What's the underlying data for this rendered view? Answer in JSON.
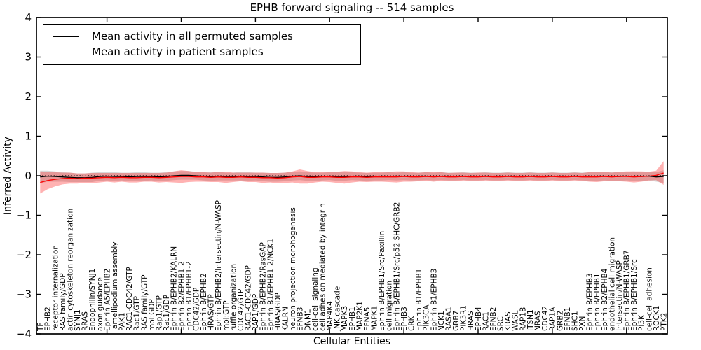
{
  "figure": {
    "title": "EPHB forward signaling -- 514 samples",
    "xlabel": "Cellular Entities",
    "ylabel": "Inferred Activity"
  },
  "legend": {
    "position": "upper left",
    "entries": [
      {
        "label": "Mean activity in all permuted samples",
        "color": "#000000"
      },
      {
        "label": "Mean activity in patient samples",
        "color": "#ff0000"
      }
    ]
  },
  "chart_data": {
    "type": "line",
    "title": "EPHB forward signaling -- 514 samples",
    "xlabel": "Cellular Entities",
    "ylabel": "Inferred Activity",
    "ylim": [
      -4,
      4
    ],
    "grid": false,
    "legend_position": "upper left",
    "y_ticks": [
      "4",
      "3",
      "2",
      "1",
      "0",
      "−1",
      "−2",
      "−3",
      "−4"
    ],
    "zero_line": {
      "y": 0,
      "style": "dotted",
      "color": "#000000"
    },
    "band_colors": {
      "permuted": "#808080",
      "patient": "#ff0000"
    },
    "categories": [
      "TF",
      "EPHB2",
      "receptor internalization",
      "RAS family/GDP",
      "actin cytoskeleton reorganization",
      "SYNJ1",
      "RRAS",
      "Endophilin/SYNJ1",
      "axon guidance",
      "Ephrin A5/EPHB2",
      "lamellipodium assembly",
      "PAK1",
      "RAC1-CDC42/GTP",
      "Rac1/GTP",
      "RAS family/GTP",
      "mol:GDP",
      "Rap1/GTP",
      "Rac1/GDP",
      "Ephrin B/EPHB2/KALRN",
      "Ephrin B2/EPHB1-2",
      "Ephrin B1/EPHB1-2",
      "CDC42/GDP",
      "Ephrin B/EPHB2",
      "HRAS/GTP",
      "Ephrin B/EPHB2/Intersectin/N-WASP",
      "mol:GTP",
      "ruffle organization",
      "CDC42/GTP",
      "RAC1-CDC42/GDP",
      "RAP1/GDP",
      "Ephrin B/EPHB2/RasGAP",
      "Ephrin B1/EPHB1-2/NCK1",
      "HRAS/GDP",
      "KALRN",
      "neuron projection morphogenesis",
      "EFNB3",
      "DNM1",
      "cell-cell signaling",
      "cell adhesion mediated by integrin",
      "MAP4K4",
      "JNK cascade",
      "MAPK3",
      "EPHB1",
      "MAP2K1",
      "EFNA5",
      "MAPK1",
      "Ephrin B/EPHB1/Src/Paxillin",
      "cell migration",
      "Ephrin B/EPHB1/Src/p52 SHC/GRB2",
      "EPHB3",
      "CRK",
      "Ephrin B1/EPHB1",
      "PIK3CA",
      "Ephrin B1/EPHB3",
      "NCK1",
      "RASA1",
      "GRB7",
      "PIK3R1",
      "HRAS",
      "EPHB4",
      "RAC1",
      "EFNB2",
      "SRC",
      "KRAS",
      "WASL",
      "RAP1B",
      "ITSN1",
      "NRAS",
      "CDC42",
      "RAP1A",
      "GRB2",
      "EFNB1",
      "SHC1",
      "PXN",
      "Ephrin B/EPHB3",
      "Ephrin B/EPHB1",
      "Ephrin B2/EPHB4",
      "endothelial cell migration",
      "Intersectin/N-WASP",
      "Ephrin B/EPHB1/GRB7",
      "Ephrin B/EPHB1/Src",
      "PI3K",
      "cell-cell adhesion",
      "ROCK1",
      "PTK2"
    ],
    "series": [
      {
        "name": "Mean activity in all permuted samples",
        "color": "#000000",
        "values": [
          -0.03,
          -0.01,
          -0.02,
          -0.03,
          -0.04,
          -0.05,
          -0.05,
          -0.04,
          -0.02,
          -0.01,
          -0.02,
          -0.02,
          -0.03,
          -0.02,
          -0.02,
          -0.02,
          -0.03,
          -0.02,
          0.0,
          0.01,
          0.01,
          0.0,
          -0.01,
          -0.02,
          -0.01,
          -0.02,
          -0.02,
          -0.01,
          -0.02,
          -0.02,
          -0.03,
          -0.04,
          -0.04,
          -0.03,
          -0.01,
          0.0,
          -0.02,
          -0.03,
          -0.02,
          -0.01,
          -0.02,
          -0.02,
          -0.01,
          -0.02,
          -0.03,
          -0.02,
          -0.02,
          -0.01,
          -0.02,
          -0.01,
          -0.02,
          -0.02,
          -0.01,
          -0.02,
          -0.01,
          -0.02,
          -0.02,
          -0.01,
          -0.02,
          -0.02,
          -0.01,
          -0.02,
          -0.02,
          -0.01,
          -0.02,
          -0.02,
          -0.01,
          -0.02,
          -0.02,
          -0.01,
          -0.02,
          -0.02,
          -0.01,
          -0.02,
          -0.02,
          -0.02,
          -0.01,
          -0.02,
          -0.02,
          -0.01,
          -0.01,
          -0.02,
          -0.01,
          -0.03,
          -0.02
        ],
        "band_halfwidth": [
          0.16,
          0.14,
          0.13,
          0.12,
          0.12,
          0.11,
          0.11,
          0.12,
          0.11,
          0.11,
          0.11,
          0.1,
          0.11,
          0.11,
          0.11,
          0.1,
          0.11,
          0.11,
          0.11,
          0.11,
          0.11,
          0.1,
          0.11,
          0.11,
          0.11,
          0.1,
          0.1,
          0.11,
          0.11,
          0.1,
          0.11,
          0.11,
          0.11,
          0.11,
          0.11,
          0.11,
          0.11,
          0.11,
          0.1,
          0.1,
          0.11,
          0.11,
          0.1,
          0.1,
          0.1,
          0.1,
          0.1,
          0.1,
          0.1,
          0.1,
          0.1,
          0.1,
          0.1,
          0.1,
          0.1,
          0.1,
          0.1,
          0.1,
          0.1,
          0.1,
          0.1,
          0.1,
          0.1,
          0.1,
          0.1,
          0.1,
          0.1,
          0.1,
          0.1,
          0.1,
          0.1,
          0.1,
          0.1,
          0.1,
          0.11,
          0.11,
          0.11,
          0.11,
          0.11,
          0.11,
          0.12,
          0.11,
          0.11,
          0.12,
          0.16
        ]
      },
      {
        "name": "Mean activity in patient samples",
        "color": "#ff0000",
        "values": [
          -0.17,
          -0.12,
          -0.09,
          -0.07,
          -0.06,
          -0.07,
          -0.06,
          -0.06,
          -0.05,
          -0.04,
          -0.05,
          -0.04,
          -0.05,
          -0.05,
          -0.04,
          -0.04,
          -0.05,
          -0.04,
          -0.03,
          -0.02,
          -0.02,
          -0.03,
          -0.03,
          -0.04,
          -0.03,
          -0.04,
          -0.04,
          -0.03,
          -0.04,
          -0.04,
          -0.05,
          -0.05,
          -0.06,
          -0.05,
          -0.03,
          -0.02,
          -0.04,
          -0.04,
          -0.03,
          -0.03,
          -0.04,
          -0.04,
          -0.03,
          -0.03,
          -0.04,
          -0.03,
          -0.03,
          -0.03,
          -0.03,
          -0.02,
          -0.03,
          -0.03,
          -0.02,
          -0.03,
          -0.02,
          -0.03,
          -0.03,
          -0.02,
          -0.03,
          -0.03,
          -0.02,
          -0.03,
          -0.03,
          -0.02,
          -0.03,
          -0.03,
          -0.02,
          -0.03,
          -0.03,
          -0.02,
          -0.03,
          -0.03,
          -0.02,
          -0.03,
          -0.03,
          -0.03,
          -0.02,
          -0.03,
          -0.02,
          -0.02,
          -0.03,
          -0.02,
          -0.01,
          0.01,
          0.07
        ],
        "band_halfwidth": [
          0.28,
          0.22,
          0.18,
          0.15,
          0.14,
          0.13,
          0.12,
          0.13,
          0.12,
          0.11,
          0.12,
          0.11,
          0.12,
          0.12,
          0.11,
          0.11,
          0.12,
          0.12,
          0.14,
          0.16,
          0.14,
          0.12,
          0.12,
          0.12,
          0.13,
          0.14,
          0.12,
          0.11,
          0.12,
          0.12,
          0.13,
          0.12,
          0.13,
          0.13,
          0.14,
          0.18,
          0.16,
          0.13,
          0.12,
          0.13,
          0.14,
          0.16,
          0.14,
          0.12,
          0.12,
          0.12,
          0.12,
          0.13,
          0.14,
          0.13,
          0.12,
          0.11,
          0.11,
          0.12,
          0.11,
          0.1,
          0.11,
          0.1,
          0.1,
          0.11,
          0.1,
          0.1,
          0.1,
          0.1,
          0.1,
          0.1,
          0.1,
          0.1,
          0.1,
          0.1,
          0.1,
          0.1,
          0.1,
          0.1,
          0.12,
          0.13,
          0.12,
          0.11,
          0.12,
          0.13,
          0.14,
          0.13,
          0.11,
          0.12,
          0.3
        ]
      }
    ]
  }
}
